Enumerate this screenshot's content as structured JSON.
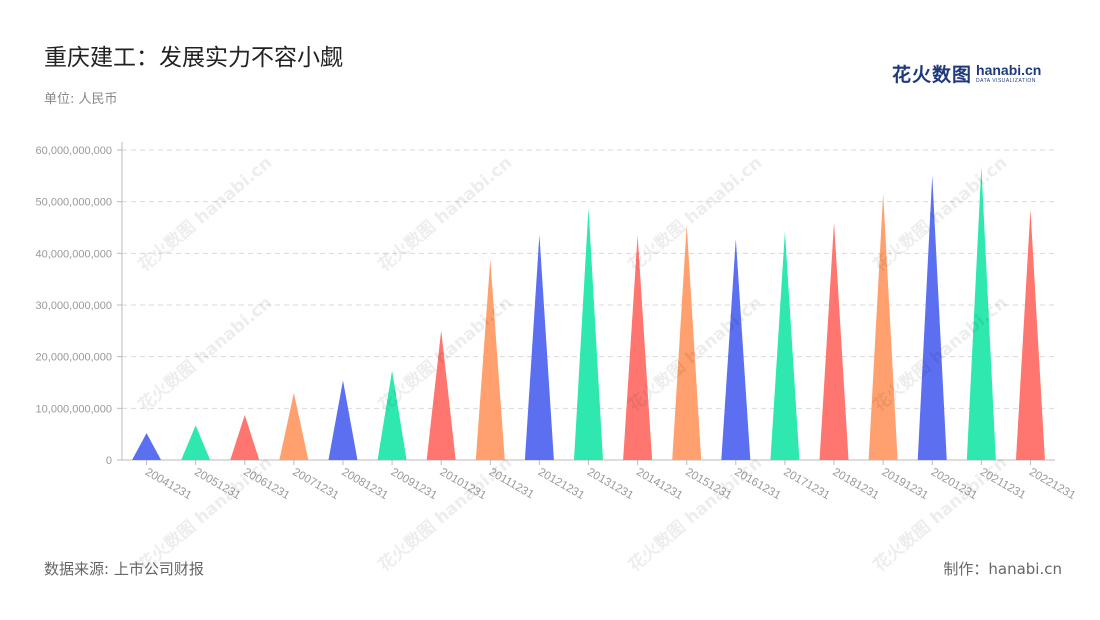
{
  "title": "重庆建工：发展实力不容小觑",
  "unit": "单位: 人民币",
  "source": "数据来源: 上市公司财报",
  "credit": "制作：hanabi.cn",
  "logo": {
    "cn": "花火数图",
    "en": "hanabi.cn",
    "sub": "DATA VISUALIZATION"
  },
  "watermark": "花火数图 hanabi.cn",
  "palette": [
    "#5b6ff0",
    "#2ee8b0",
    "#ff7670",
    "#ffa06e"
  ],
  "chart_data": {
    "type": "bar",
    "bar_shape": "triangle",
    "categories": [
      "20041231",
      "20051231",
      "20061231",
      "20071231",
      "20081231",
      "20091231",
      "20101231",
      "20111231",
      "20121231",
      "20131231",
      "20141231",
      "20151231",
      "20161231",
      "20171231",
      "20181231",
      "20191231",
      "20201231",
      "20211231",
      "20221231"
    ],
    "values": [
      5200000000,
      6700000000,
      8700000000,
      13000000000,
      15400000000,
      17300000000,
      25100000000,
      38800000000,
      43600000000,
      48800000000,
      43500000000,
      45500000000,
      42800000000,
      44200000000,
      46000000000,
      51500000000,
      55100000000,
      56800000000,
      48500000000
    ],
    "colors": [
      "#5b6ff0",
      "#2ee8b0",
      "#ff7670",
      "#ffa06e",
      "#5b6ff0",
      "#2ee8b0",
      "#ff7670",
      "#ffa06e",
      "#5b6ff0",
      "#2ee8b0",
      "#ff7670",
      "#ffa06e",
      "#5b6ff0",
      "#2ee8b0",
      "#ff7670",
      "#ffa06e",
      "#5b6ff0",
      "#2ee8b0",
      "#ff7670"
    ],
    "yticks": [
      0,
      10000000000,
      20000000000,
      30000000000,
      40000000000,
      50000000000,
      60000000000
    ],
    "ytick_labels": [
      "0",
      "10,000,000,000",
      "20,000,000,000",
      "30,000,000,000",
      "40,000,000,000",
      "50,000,000,000",
      "60,000,000,000"
    ],
    "ylim": [
      0,
      60000000000
    ],
    "grid": true,
    "legend": "none"
  }
}
